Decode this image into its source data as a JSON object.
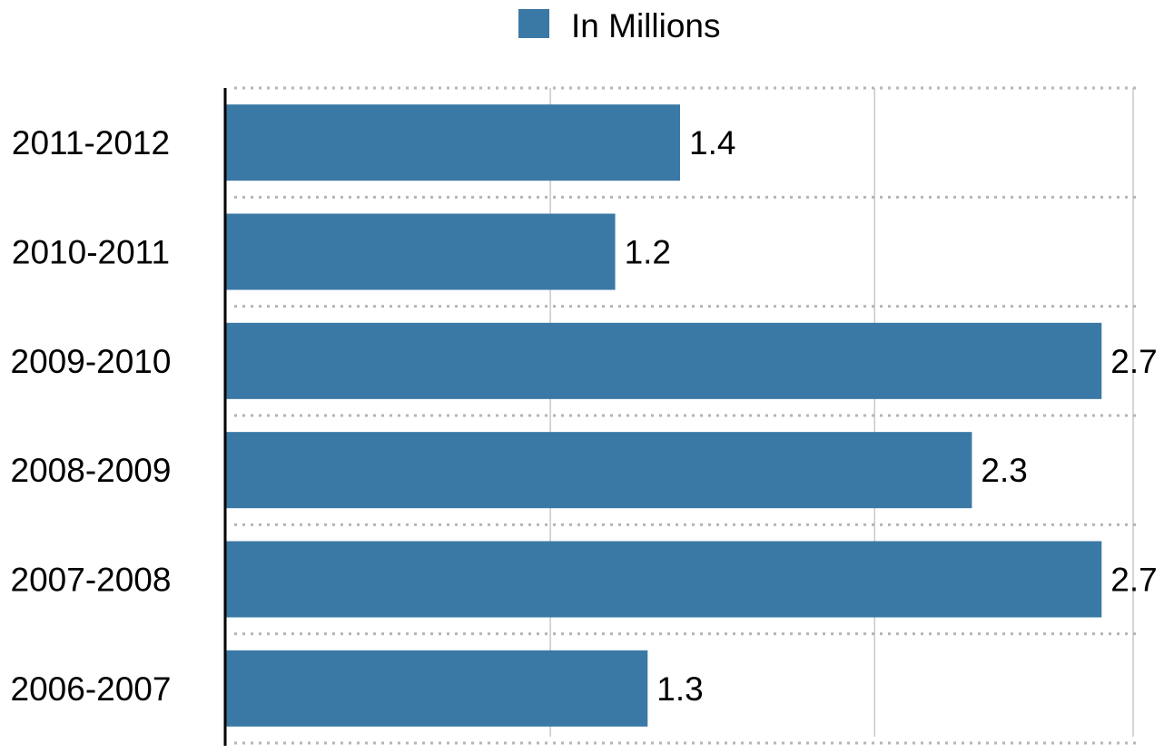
{
  "chart_data": {
    "type": "bar",
    "orientation": "horizontal",
    "categories": [
      "2011-2012",
      "2010-2011",
      "2009-2010",
      "2008-2009",
      "2007-2008",
      "2006-2007"
    ],
    "series": [
      {
        "name": "In Millions",
        "values": [
          1.4,
          1.2,
          2.7,
          2.3,
          2.7,
          1.3
        ],
        "color": "#3a79a5"
      }
    ],
    "data_labels": [
      "1.4",
      "1.2",
      "2.7",
      "2.3",
      "2.7",
      "1.3"
    ],
    "xlim": [
      0,
      2.8
    ],
    "grid": true,
    "legend": "top-center"
  }
}
